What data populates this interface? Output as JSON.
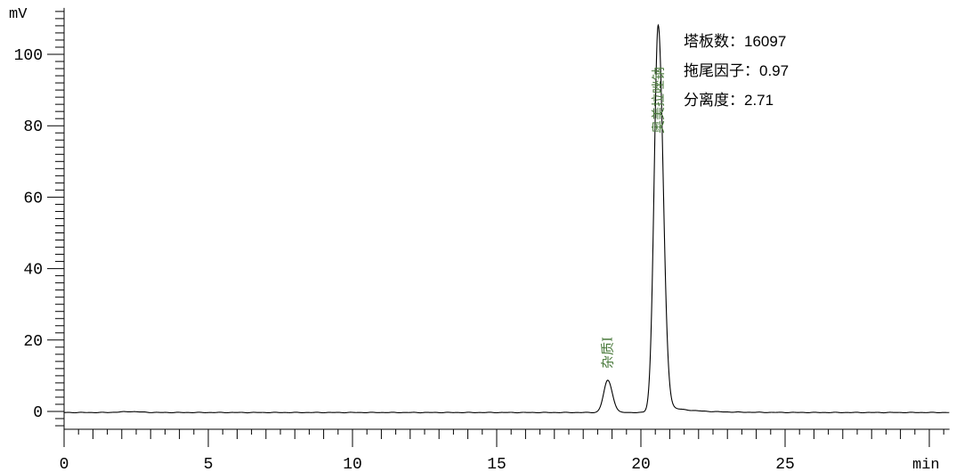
{
  "chart_data": {
    "type": "line",
    "title": "",
    "xlabel": "min",
    "ylabel": "mV",
    "xlim": [
      0,
      30.7
    ],
    "ylim": [
      -5,
      113
    ],
    "xticks": [
      0,
      5,
      10,
      15,
      20,
      25
    ],
    "x_unit_tick": 30,
    "yticks": [
      0,
      20,
      40,
      60,
      80,
      100
    ],
    "x_minor_step": 0.5,
    "y_minor_step": 2,
    "grid": false,
    "line_color": "#000000",
    "peak_label_color": "#4a7a3c",
    "baseline": -0.3,
    "peaks": [
      {
        "name": "杂质I",
        "retention_time": 18.85,
        "height": 9.0
      },
      {
        "name": "奥美拉唑钠",
        "retention_time": 20.6,
        "height": 108.5
      }
    ],
    "annotations": [
      "塔板数：16097",
      "拖尾因子：0.97",
      "分离度：2.71"
    ]
  }
}
